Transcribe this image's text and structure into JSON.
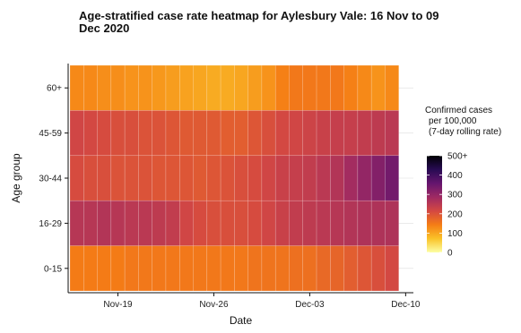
{
  "chart_data": {
    "type": "heatmap",
    "title": "Age-stratified case rate heatmap for Aylesbury Vale: 16 Nov to 09 Dec 2020",
    "title_lines": [
      "Age-stratified case rate heatmap for Aylesbury Vale: 16 Nov to 09",
      "Dec 2020"
    ],
    "xlabel": "Date",
    "ylabel": "Age group",
    "x": [
      "2020-11-16",
      "2020-11-17",
      "2020-11-18",
      "2020-11-19",
      "2020-11-20",
      "2020-11-21",
      "2020-11-22",
      "2020-11-23",
      "2020-11-24",
      "2020-11-25",
      "2020-11-26",
      "2020-11-27",
      "2020-11-28",
      "2020-11-29",
      "2020-11-30",
      "2020-12-01",
      "2020-12-02",
      "2020-12-03",
      "2020-12-04",
      "2020-12-05",
      "2020-12-06",
      "2020-12-07",
      "2020-12-08",
      "2020-12-09"
    ],
    "xlim": [
      "2020-11-15.5",
      "2020-12-10.5"
    ],
    "x_ticks": [
      {
        "date": "2020-11-19",
        "label": "Nov-19"
      },
      {
        "date": "2020-11-26",
        "label": "Nov-26"
      },
      {
        "date": "2020-12-03",
        "label": "Dec-03"
      },
      {
        "date": "2020-12-10",
        "label": "Dec-10"
      }
    ],
    "y": [
      "60+",
      "45-59",
      "30-44",
      "16-29",
      "0-15"
    ],
    "values": [
      [
        130,
        130,
        125,
        125,
        120,
        120,
        115,
        110,
        105,
        100,
        95,
        95,
        100,
        110,
        120,
        140,
        150,
        150,
        150,
        150,
        140,
        130,
        120,
        130
      ],
      [
        220,
        215,
        210,
        205,
        205,
        200,
        200,
        195,
        190,
        190,
        190,
        185,
        185,
        195,
        205,
        215,
        220,
        225,
        230,
        235,
        235,
        240,
        245,
        250
      ],
      [
        210,
        205,
        205,
        200,
        200,
        200,
        195,
        195,
        195,
        190,
        195,
        200,
        205,
        210,
        220,
        230,
        235,
        240,
        250,
        260,
        280,
        300,
        320,
        340
      ],
      [
        255,
        255,
        260,
        255,
        250,
        250,
        245,
        240,
        220,
        210,
        205,
        205,
        205,
        210,
        220,
        230,
        240,
        245,
        250,
        255,
        260,
        265,
        265,
        265
      ],
      [
        145,
        145,
        145,
        145,
        150,
        150,
        150,
        150,
        150,
        150,
        150,
        150,
        150,
        155,
        155,
        155,
        160,
        160,
        170,
        175,
        185,
        195,
        205,
        215
      ]
    ],
    "legend": {
      "title_lines": [
        "Confirmed cases",
        "per 100,000",
        "(7-day rolling rate)"
      ],
      "min": 0,
      "max": 500,
      "ticks": [
        {
          "value": 0,
          "label": "0"
        },
        {
          "value": 100,
          "label": "100"
        },
        {
          "value": 200,
          "label": "200"
        },
        {
          "value": 300,
          "label": "300"
        },
        {
          "value": 400,
          "label": "400"
        },
        {
          "value": 500,
          "label": "500+"
        }
      ],
      "placement": "right"
    },
    "colors": {
      "scale": [
        "#fcffa4",
        "#fac228",
        "#f57d15",
        "#d44842",
        "#9f2a63",
        "#65156e",
        "#280b53",
        "#000004"
      ],
      "grid": "#dddddd"
    },
    "grid": true
  }
}
